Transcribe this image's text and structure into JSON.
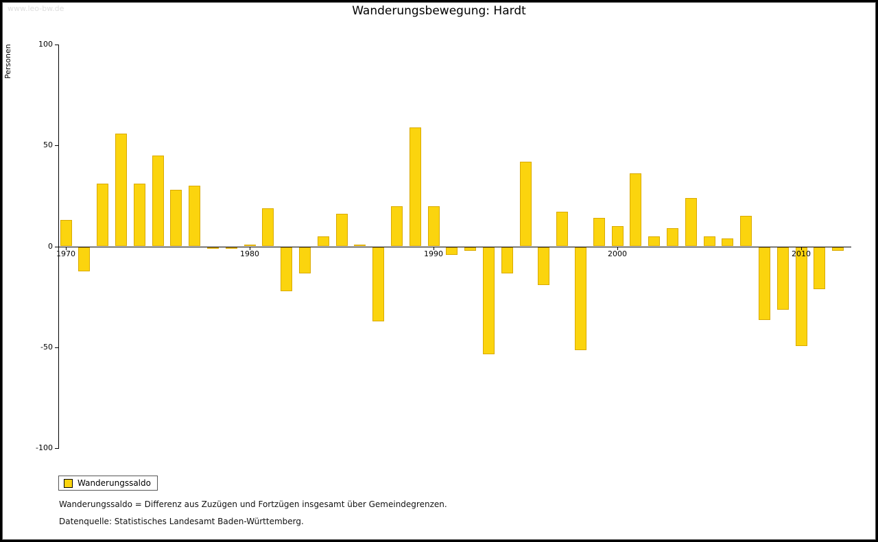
{
  "watermark": "www.leo-bw.de",
  "title": "Wanderungsbewegung: Hardt",
  "legend": {
    "label": "Wanderungssaldo"
  },
  "footnotes": {
    "definition": "Wanderungssaldo = Differenz aus Zuzügen und Fortzügen insgesamt über Gemeindegrenzen.",
    "source": "Datenquelle: Statistisches Landesamt Baden-Württemberg."
  },
  "colors": {
    "bar_fill": "#FBD40E",
    "bar_border": "#D9A900",
    "axis": "#000000",
    "watermark": "#DDDDDD"
  },
  "chart_data": {
    "type": "bar",
    "title": "Wanderungsbewegung: Hardt",
    "xlabel": "",
    "ylabel": "Personen",
    "ylim": [
      -100,
      100
    ],
    "yticks": [
      100,
      50,
      0,
      -50,
      -100
    ],
    "xticks": [
      1970,
      1980,
      1990,
      2000,
      2010
    ],
    "grid": false,
    "legend_position": "bottom-left",
    "series_name": "Wanderungssaldo",
    "years": [
      1970,
      1971,
      1972,
      1973,
      1974,
      1975,
      1976,
      1977,
      1978,
      1979,
      1980,
      1981,
      1982,
      1983,
      1984,
      1985,
      1986,
      1987,
      1988,
      1989,
      1990,
      1991,
      1992,
      1993,
      1994,
      1995,
      1996,
      1997,
      1998,
      1999,
      2000,
      2001,
      2002,
      2003,
      2004,
      2005,
      2006,
      2007,
      2008,
      2009,
      2010,
      2011,
      2012
    ],
    "values": [
      13,
      -12,
      31,
      56,
      31,
      45,
      28,
      30,
      -1,
      -1,
      1,
      19,
      -22,
      -13,
      5,
      16,
      1,
      -37,
      20,
      59,
      20,
      -4,
      -2,
      -53,
      -13,
      42,
      -19,
      17,
      -51,
      14,
      10,
      36,
      5,
      9,
      24,
      5,
      4,
      15,
      -36,
      -31,
      -49,
      -21,
      -2
    ]
  }
}
